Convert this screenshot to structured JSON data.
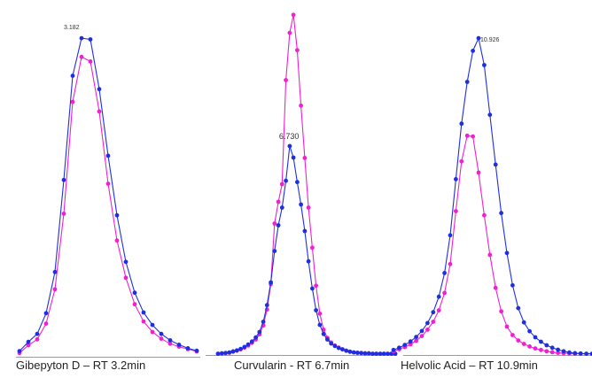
{
  "colors": {
    "series_1": "#1f2fe0",
    "series_2": "#f020d0",
    "axis": "#9a9a9a"
  },
  "chart_data": [
    {
      "type": "line",
      "caption": "Gibepyton D – RT 3.2min",
      "peak_label": "3.182",
      "x": [
        1,
        2,
        3,
        4,
        5,
        6,
        7,
        8,
        9,
        10,
        11,
        12,
        13,
        14,
        15,
        16,
        17,
        18,
        19,
        20,
        21
      ],
      "series": [
        {
          "values": [
            1.5,
            4.4,
            6.9,
            13.4,
            26.3,
            55.2,
            87.9,
            99.7,
            99.3,
            83.7,
            62.8,
            44.1,
            29.5,
            19.8,
            13.6,
            9.7,
            6.9,
            4.9,
            3.5,
            2.4,
            1.6
          ]
        },
        {
          "values": [
            0.9,
            3.3,
            5.2,
            10.1,
            20.9,
            44.6,
            79.7,
            93.8,
            92.4,
            76.7,
            54.0,
            36.2,
            24.5,
            16.2,
            10.8,
            7.5,
            5.4,
            3.8,
            2.9,
            2.1,
            1.4
          ]
        }
      ]
    },
    {
      "type": "line",
      "caption": "Curvularin - RT 6.7min",
      "peak_label": "6.730",
      "x": [
        1,
        2,
        3,
        4,
        5,
        6,
        7,
        8,
        9,
        10,
        11,
        12,
        13,
        14,
        15,
        16,
        17,
        18,
        19,
        20,
        21,
        22,
        23,
        24,
        25,
        26,
        27,
        28,
        29,
        30,
        31,
        32,
        33,
        34,
        35,
        36,
        37,
        38,
        39,
        40,
        41,
        42,
        43,
        44,
        45,
        46,
        47,
        48
      ],
      "series": [
        {
          "values": [
            0.1,
            0.2,
            0.3,
            0.5,
            0.8,
            1.1,
            1.5,
            2.1,
            2.8,
            3.7,
            4.9,
            6.5,
            9.5,
            14.4,
            21.1,
            30.3,
            37.9,
            43.1,
            51.0,
            61.2,
            57.8,
            50.6,
            44.0,
            36.2,
            27.3,
            19.3,
            12.9,
            8.6,
            5.9,
            4.3,
            3.1,
            2.4,
            1.8,
            1.4,
            1.0,
            0.7,
            0.5,
            0.4,
            0.3,
            0.2,
            0.2,
            0.1,
            0.1,
            0.1,
            0.1,
            0.1,
            0.1,
            0.1
          ]
        },
        {
          "values": [
            0.1,
            0.2,
            0.3,
            0.4,
            0.7,
            1.0,
            1.4,
            1.9,
            2.5,
            3.3,
            4.3,
            5.8,
            8.4,
            13.1,
            20.6,
            38.4,
            44.8,
            50.0,
            80.6,
            94.5,
            99.8,
            89.4,
            73.1,
            57.7,
            43.1,
            31.3,
            20.1,
            11.9,
            7.2,
            4.8,
            3.4,
            2.5,
            1.9,
            1.4,
            1.0,
            0.7,
            0.5,
            0.4,
            0.3,
            0.2,
            0.2,
            0.1,
            0.1,
            0.1,
            0.1,
            0.1,
            0.1,
            0.1
          ]
        }
      ]
    },
    {
      "type": "line",
      "caption": "Helvolic Acid – RT 10.9min",
      "peak_label": "10.926",
      "x": [
        1,
        2,
        3,
        4,
        5,
        6,
        7,
        8,
        9,
        10,
        11,
        12,
        13,
        14,
        15,
        16,
        17,
        18,
        19,
        20,
        21,
        22,
        23,
        24,
        25,
        26,
        27,
        28,
        29,
        30,
        31,
        32,
        33,
        34,
        35,
        36
      ],
      "series": [
        {
          "values": [
            1.3,
            2.0,
            2.9,
            4.0,
            5.4,
            7.3,
            9.8,
            13.2,
            18.1,
            25.6,
            37.5,
            55.2,
            72.7,
            85.9,
            95.7,
            99.7,
            91.2,
            75.5,
            59.8,
            44.5,
            31.9,
            21.7,
            14.5,
            10.0,
            7.2,
            5.3,
            3.9,
            2.8,
            2.0,
            1.4,
            0.9,
            0.5,
            0.3,
            0.2,
            0.1,
            0.1
          ]
        },
        {
          "values": [
            0.9,
            1.5,
            2.2,
            3.1,
            4.2,
            5.7,
            7.7,
            10.2,
            13.8,
            19.3,
            28.4,
            45.1,
            60.8,
            68.9,
            68.7,
            57.3,
            43.8,
            31.3,
            20.9,
            13.5,
            8.7,
            6.0,
            4.3,
            3.2,
            2.4,
            1.8,
            1.3,
            0.9,
            0.6,
            0.4,
            0.3,
            0.2,
            0.1,
            0.1,
            0.1,
            0.1
          ]
        }
      ]
    }
  ]
}
